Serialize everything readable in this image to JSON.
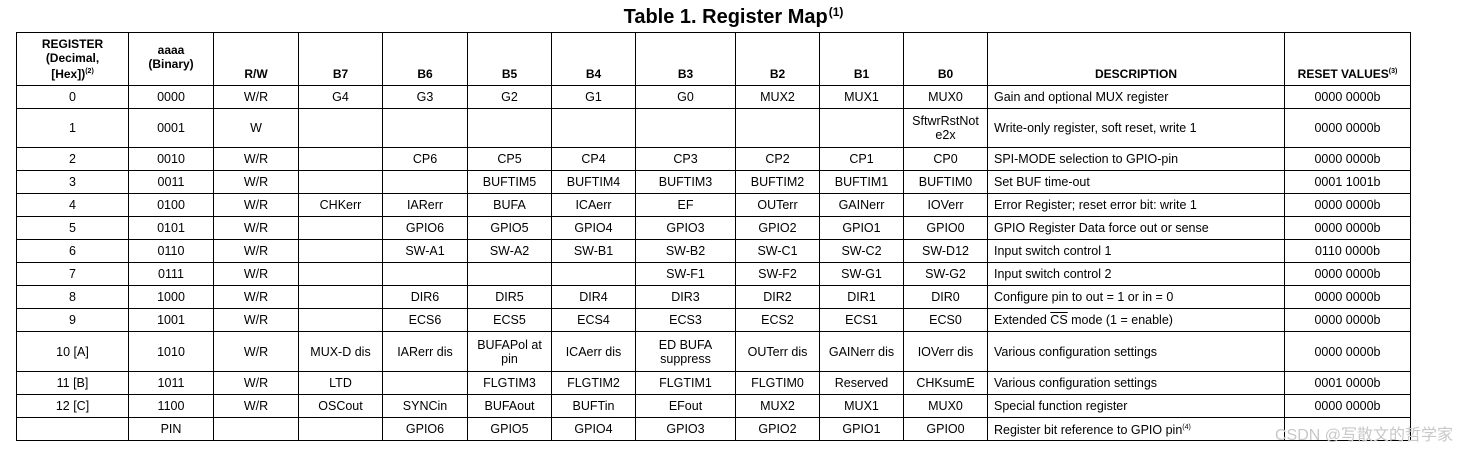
{
  "title": {
    "text": "Table 1. Register Map",
    "note": "(1)"
  },
  "headers": {
    "register_l1": "REGISTER",
    "register_l2": "(Decimal,",
    "register_l3": "[Hex])",
    "register_note": "(2)",
    "aaaa_l1": "aaaa",
    "aaaa_l2": "(Binary)",
    "rw": "R/W",
    "b7": "B7",
    "b6": "B6",
    "b5": "B5",
    "b4": "B4",
    "b3": "B3",
    "b2": "B2",
    "b1": "B1",
    "b0": "B0",
    "description": "DESCRIPTION",
    "reset": "RESET VALUES",
    "reset_note": "(3)"
  },
  "rows": [
    {
      "reg": "0",
      "aaaa": "0000",
      "rw": "W/R",
      "b7": "G4",
      "b6": "G3",
      "b5": "G2",
      "b4": "G1",
      "b3": "G0",
      "b2": "MUX2",
      "b1": "MUX1",
      "b0": "MUX0",
      "desc": "Gain and optional MUX register",
      "reset": "0000 0000b"
    },
    {
      "reg": "1",
      "aaaa": "0001",
      "rw": "W",
      "b7": "",
      "b6": "",
      "b5": "",
      "b4": "",
      "b3": "",
      "b2": "",
      "b1": "",
      "b0_l1": "SftwrRstNot",
      "b0_l2": "e2x",
      "desc": "Write-only register, soft reset, write 1",
      "reset": "0000 0000b"
    },
    {
      "reg": "2",
      "aaaa": "0010",
      "rw": "W/R",
      "b7": "",
      "b6": "CP6",
      "b5": "CP5",
      "b4": "CP4",
      "b3": "CP3",
      "b2": "CP2",
      "b1": "CP1",
      "b0": "CP0",
      "desc": "SPI-MODE selection to GPIO-pin",
      "reset": "0000 0000b"
    },
    {
      "reg": "3",
      "aaaa": "0011",
      "rw": "W/R",
      "b7": "",
      "b6": "",
      "b5": "BUFTIM5",
      "b4": "BUFTIM4",
      "b3": "BUFTIM3",
      "b2": "BUFTIM2",
      "b1": "BUFTIM1",
      "b0": "BUFTIM0",
      "desc": "Set BUF time-out",
      "reset": "0001 1001b"
    },
    {
      "reg": "4",
      "aaaa": "0100",
      "rw": "W/R",
      "b7": "CHKerr",
      "b6": "IARerr",
      "b5": "BUFA",
      "b4": "ICAerr",
      "b3": "EF",
      "b2": "OUTerr",
      "b1": "GAINerr",
      "b0": "IOVerr",
      "desc": "Error Register; reset error bit: write 1",
      "reset": "0000 0000b"
    },
    {
      "reg": "5",
      "aaaa": "0101",
      "rw": "W/R",
      "b7": "",
      "b6": "GPIO6",
      "b5": "GPIO5",
      "b4": "GPIO4",
      "b3": "GPIO3",
      "b2": "GPIO2",
      "b1": "GPIO1",
      "b0": "GPIO0",
      "desc": "GPIO Register Data force out or sense",
      "reset": "0000 0000b"
    },
    {
      "reg": "6",
      "aaaa": "0110",
      "rw": "W/R",
      "b7": "",
      "b6": "SW-A1",
      "b5": "SW-A2",
      "b4": "SW-B1",
      "b3": "SW-B2",
      "b2": "SW-C1",
      "b1": "SW-C2",
      "b0": "SW-D12",
      "desc": "Input switch control 1",
      "reset": "0110 0000b"
    },
    {
      "reg": "7",
      "aaaa": "0111",
      "rw": "W/R",
      "b7": "",
      "b6": "",
      "b5": "",
      "b4": "",
      "b3": "SW-F1",
      "b2": "SW-F2",
      "b1": "SW-G1",
      "b0": "SW-G2",
      "desc": "Input switch control 2",
      "reset": "0000 0000b"
    },
    {
      "reg": "8",
      "aaaa": "1000",
      "rw": "W/R",
      "b7": "",
      "b6": "DIR6",
      "b5": "DIR5",
      "b4": "DIR4",
      "b3": "DIR3",
      "b2": "DIR2",
      "b1": "DIR1",
      "b0": "DIR0",
      "desc": "Configure pin to out = 1 or in = 0",
      "reset": "0000 0000b"
    },
    {
      "reg": "9",
      "aaaa": "1001",
      "rw": "W/R",
      "b7": "",
      "b6": "ECS6",
      "b5": "ECS5",
      "b4": "ECS4",
      "b3": "ECS3",
      "b2": "ECS2",
      "b1": "ECS1",
      "b0": "ECS0",
      "desc_pre": "Extended ",
      "desc_over": "CS",
      "desc_post": " mode (1 = enable)",
      "reset": "0000 0000b"
    },
    {
      "reg": "10 [A]",
      "aaaa": "1010",
      "rw": "W/R",
      "b7": "MUX-D dis",
      "b6": "IARerr dis",
      "b5": "BUFAPol at pin",
      "b4": "ICAerr dis",
      "b3_l1": "ED BUFA",
      "b3_l2": "suppress",
      "b2": "OUTerr dis",
      "b1": "GAINerr dis",
      "b0": "IOVerr dis",
      "desc": "Various configuration settings",
      "reset": "0000 0000b"
    },
    {
      "reg": "11 [B]",
      "aaaa": "1011",
      "rw": "W/R",
      "b7": "LTD",
      "b6": "",
      "b5": "FLGTIM3",
      "b4": "FLGTIM2",
      "b3": "FLGTIM1",
      "b2": "FLGTIM0",
      "b1": "Reserved",
      "b0": "CHKsumE",
      "desc": "Various configuration settings",
      "reset": "0001 0000b"
    },
    {
      "reg": "12 [C]",
      "aaaa": "1100",
      "rw": "W/R",
      "b7": "OSCout",
      "b6": "SYNCin",
      "b5": "BUFAout",
      "b4": "BUFTin",
      "b3": "EFout",
      "b2": "MUX2",
      "b1": "MUX1",
      "b0": "MUX0",
      "desc": "Special function register",
      "reset": "0000 0000b"
    },
    {
      "reg": "",
      "aaaa": "PIN",
      "rw": "",
      "b7": "",
      "b6": "GPIO6",
      "b5": "GPIO5",
      "b4": "GPIO4",
      "b3": "GPIO3",
      "b2": "GPIO2",
      "b1": "GPIO1",
      "b0": "GPIO0",
      "desc": "Register bit reference to GPIO pin",
      "desc_note": "(4)",
      "reset": ""
    }
  ],
  "watermark": "CSDN @写散文的哲学家"
}
